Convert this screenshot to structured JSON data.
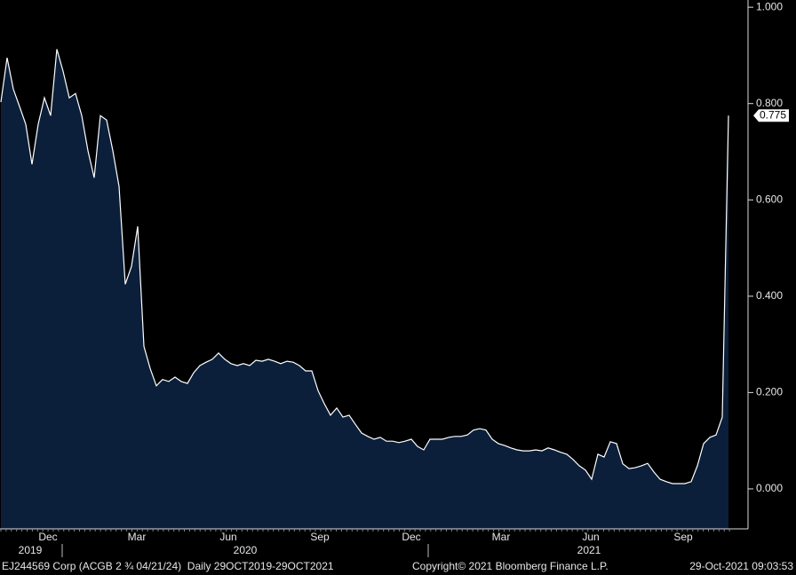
{
  "chart_data": {
    "type": "area",
    "categories": [
      null,
      null,
      null,
      null,
      null,
      null,
      null,
      null,
      null,
      null,
      null,
      null,
      null,
      null,
      null,
      null,
      null,
      null,
      null,
      null,
      null,
      null,
      null,
      null,
      null,
      null,
      null,
      null,
      null,
      null,
      null,
      null,
      null,
      null,
      null,
      null,
      null,
      null,
      null,
      null,
      null,
      null,
      null,
      null,
      null,
      null,
      null,
      null,
      null,
      null,
      null,
      null,
      null,
      null,
      null,
      null,
      null,
      null,
      null,
      null,
      null,
      null,
      null,
      null,
      null,
      null,
      null,
      null,
      null,
      null,
      null,
      null,
      null,
      null,
      null,
      null,
      null,
      null,
      null,
      null,
      null,
      null,
      null,
      null,
      null,
      null,
      null,
      null,
      null,
      null,
      null,
      null,
      null,
      null,
      null,
      null,
      null,
      null,
      null,
      null,
      null,
      null,
      null,
      null,
      null,
      null,
      null,
      null,
      null,
      null,
      null,
      null,
      null,
      null,
      null,
      null,
      null,
      null
    ],
    "values": [
      0.803,
      0.895,
      0.83,
      0.794,
      0.757,
      0.674,
      0.757,
      0.812,
      0.775,
      0.913,
      0.867,
      0.812,
      0.821,
      0.775,
      0.702,
      0.646,
      0.775,
      0.766,
      0.702,
      0.628,
      0.425,
      0.462,
      0.545,
      0.296,
      0.25,
      0.214,
      0.227,
      0.223,
      0.232,
      0.223,
      0.219,
      0.241,
      0.256,
      0.263,
      0.269,
      0.282,
      0.269,
      0.26,
      0.256,
      0.26,
      0.256,
      0.267,
      0.265,
      0.269,
      0.265,
      0.26,
      0.265,
      0.263,
      0.256,
      0.245,
      0.245,
      0.204,
      0.177,
      0.153,
      0.168,
      0.149,
      0.153,
      0.134,
      0.116,
      0.109,
      0.103,
      0.107,
      0.099,
      0.099,
      0.096,
      0.099,
      0.103,
      0.088,
      0.081,
      0.103,
      0.103,
      0.103,
      0.107,
      0.109,
      0.109,
      0.112,
      0.122,
      0.125,
      0.122,
      0.103,
      0.094,
      0.09,
      0.085,
      0.081,
      0.079,
      0.079,
      0.081,
      0.079,
      0.085,
      0.081,
      0.076,
      0.072,
      0.061,
      0.048,
      0.039,
      0.02,
      0.072,
      0.066,
      0.098,
      0.094,
      0.052,
      0.042,
      0.044,
      0.048,
      0.053,
      0.035,
      0.02,
      0.015,
      0.011,
      0.011,
      0.011,
      0.015,
      0.048,
      0.094,
      0.107,
      0.112,
      0.149,
      0.775
    ],
    "color": "#0b1f3b",
    "line_color": "#ffffff",
    "ylim": [
      -0.083,
      1.015
    ],
    "yticks": [
      {
        "value": 0,
        "label": "0.000"
      },
      {
        "value": 0.2,
        "label": "0.200"
      },
      {
        "value": 0.4,
        "label": "0.400"
      },
      {
        "value": 0.6,
        "label": "0.600"
      },
      {
        "value": 0.8,
        "label": "0.800"
      },
      {
        "value": 1,
        "label": "1.000"
      }
    ],
    "month_labels": [
      "Dec",
      "Mar",
      "Jun",
      "Sep",
      "Dec",
      "Mar",
      "Jun",
      "Sep"
    ],
    "year_labels": [
      "2019",
      "2020",
      "2021"
    ]
  },
  "footer": {
    "security": "EJ244569 Corp (ACGB 2 ¾ 04/21/24)  Daily 29OCT2019-29OCT2021",
    "copyright": "Copyright© 2021 Bloomberg Finance L.P.",
    "timestamp": "29-Oct-2021 09:03:53"
  }
}
